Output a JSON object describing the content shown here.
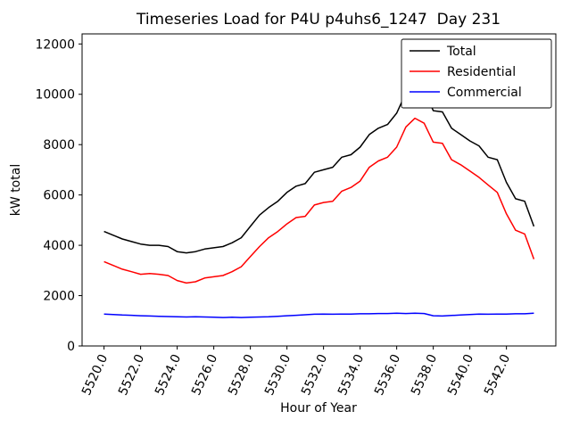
{
  "chart_data": {
    "type": "line",
    "title": "Timeseries Load for P4U p4uhs6_1247  Day 231",
    "xlabel": "Hour of Year",
    "ylabel": "kW total",
    "xlim": [
      5518.8,
      5544.7
    ],
    "ylim": [
      0,
      12400
    ],
    "grid": false,
    "legend_position": "upper right",
    "frame_color": "#000000",
    "xticks": [
      5520,
      5522,
      5524,
      5526,
      5528,
      5530,
      5532,
      5534,
      5536,
      5538,
      5540,
      5542
    ],
    "xtick_labels": [
      "5520.0",
      "5522.0",
      "5524.0",
      "5526.0",
      "5528.0",
      "5530.0",
      "5532.0",
      "5534.0",
      "5536.0",
      "5538.0",
      "5540.0",
      "5542.0"
    ],
    "yticks": [
      0,
      2000,
      4000,
      6000,
      8000,
      10000,
      12000
    ],
    "ytick_labels": [
      "0",
      "2000",
      "4000",
      "6000",
      "8000",
      "10000",
      "12000"
    ],
    "x": [
      5520.0,
      5520.5,
      5521.0,
      5521.5,
      5522.0,
      5522.5,
      5523.0,
      5523.5,
      5524.0,
      5524.5,
      5525.0,
      5525.5,
      5526.0,
      5526.5,
      5527.0,
      5527.5,
      5528.0,
      5528.5,
      5529.0,
      5529.5,
      5530.0,
      5530.5,
      5531.0,
      5531.5,
      5532.0,
      5532.5,
      5533.0,
      5533.5,
      5534.0,
      5534.5,
      5535.0,
      5535.5,
      5536.0,
      5536.5,
      5537.0,
      5537.5,
      5538.0,
      5538.5,
      5539.0,
      5539.5,
      5540.0,
      5540.5,
      5541.0,
      5541.5,
      5542.0,
      5542.5,
      5543.0,
      5543.5
    ],
    "series": [
      {
        "name": "Total",
        "color": "#000000",
        "values": [
          4550,
          4400,
          4250,
          4150,
          4050,
          4000,
          4000,
          3950,
          3750,
          3700,
          3750,
          3850,
          3900,
          3950,
          4100,
          4300,
          4750,
          5200,
          5500,
          5750,
          6100,
          6350,
          6450,
          6900,
          7000,
          7100,
          7500,
          7600,
          7900,
          8400,
          8650,
          8800,
          9250,
          10050,
          10300,
          10150,
          9350,
          9300,
          8650,
          8400,
          8150,
          7950,
          7500,
          7400,
          6500,
          5850,
          5750,
          4750
        ]
      },
      {
        "name": "Residential",
        "color": "#ff0000",
        "values": [
          3350,
          3200,
          3050,
          2950,
          2850,
          2880,
          2850,
          2800,
          2600,
          2500,
          2550,
          2700,
          2750,
          2800,
          2950,
          3150,
          3550,
          3950,
          4300,
          4550,
          4850,
          5100,
          5150,
          5600,
          5700,
          5750,
          6150,
          6300,
          6550,
          7100,
          7350,
          7500,
          7900,
          8700,
          9050,
          8850,
          8100,
          8050,
          7400,
          7200,
          6950,
          6700,
          6400,
          6100,
          5250,
          4600,
          4450,
          3450
        ]
      },
      {
        "name": "Commercial",
        "color": "#0000ff",
        "values": [
          1270,
          1250,
          1230,
          1220,
          1200,
          1190,
          1180,
          1170,
          1160,
          1150,
          1160,
          1150,
          1140,
          1130,
          1140,
          1130,
          1140,
          1150,
          1160,
          1180,
          1200,
          1220,
          1240,
          1260,
          1270,
          1260,
          1270,
          1270,
          1280,
          1280,
          1290,
          1290,
          1300,
          1290,
          1300,
          1290,
          1200,
          1190,
          1210,
          1230,
          1250,
          1270,
          1260,
          1270,
          1270,
          1280,
          1280,
          1300
        ]
      }
    ]
  }
}
